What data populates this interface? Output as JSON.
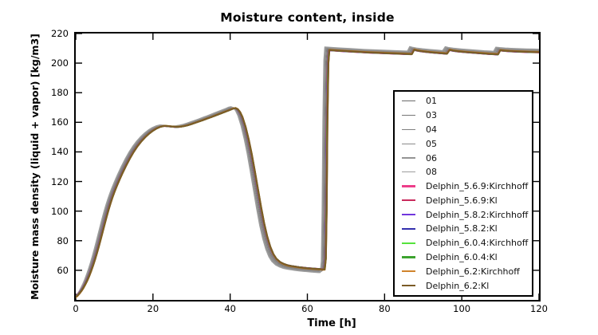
{
  "chart_data": {
    "type": "line",
    "title": "Moisture content, inside",
    "xlabel": "Time [h]",
    "ylabel": "Moisture mass density (liquid + vapor) [kg/m3]",
    "xlim": [
      0,
      120
    ],
    "ylim": [
      40,
      220
    ],
    "x_ticks": [
      0,
      20,
      40,
      60,
      80,
      100,
      120
    ],
    "y_ticks": [
      60,
      80,
      100,
      120,
      140,
      160,
      180,
      200,
      220
    ],
    "grid": false,
    "legend_position": "inside-right",
    "axis_color": "#000000",
    "background": "#ffffff",
    "pivot_value": 135,
    "series": [
      {
        "label": "01",
        "color": "#6a6a6a",
        "line_width": 1.1,
        "t_offset_h": -0.3,
        "amplitude_scale": 1.004
      },
      {
        "label": "03",
        "color": "#757575",
        "line_width": 1.1,
        "t_offset_h": -0.5,
        "amplitude_scale": 1.009
      },
      {
        "label": "04",
        "color": "#808080",
        "line_width": 1.1,
        "t_offset_h": -0.7,
        "amplitude_scale": 1.014
      },
      {
        "label": "05",
        "color": "#8a8a8a",
        "line_width": 1.1,
        "t_offset_h": -0.9,
        "amplitude_scale": 1.019
      },
      {
        "label": "06",
        "color": "#949494",
        "line_width": 1.1,
        "t_offset_h": -1.05,
        "amplitude_scale": 1.024
      },
      {
        "label": "08",
        "color": "#9e9e9e",
        "line_width": 1.1,
        "t_offset_h": -1.2,
        "amplitude_scale": 1.029
      },
      {
        "label": "Delphin_5.6.9:Kirchhoff",
        "color": "#ed3e8a",
        "line_width": 2.2,
        "t_offset_h": -0.18,
        "amplitude_scale": 0.998
      },
      {
        "label": "Delphin_5.6.9:Kl",
        "color": "#c92a5c",
        "line_width": 2.2,
        "t_offset_h": -0.15,
        "amplitude_scale": 0.9985
      },
      {
        "label": "Delphin_5.8.2:Kirchhoff",
        "color": "#7036dd",
        "line_width": 2.2,
        "t_offset_h": -0.12,
        "amplitude_scale": 0.999
      },
      {
        "label": "Delphin_5.8.2:Kl",
        "color": "#332fae",
        "line_width": 2.2,
        "t_offset_h": -0.09,
        "amplitude_scale": 0.9995
      },
      {
        "label": "Delphin_6.0.4:Kirchhoff",
        "color": "#55e33c",
        "line_width": 2.2,
        "t_offset_h": -0.06,
        "amplitude_scale": 1.0
      },
      {
        "label": "Delphin_6.0.4:Kl",
        "color": "#3da32f",
        "line_width": 2.2,
        "t_offset_h": -0.03,
        "amplitude_scale": 1.0005
      },
      {
        "label": "Delphin_6.2:Kirchhoff",
        "color": "#d0842c",
        "line_width": 2.2,
        "t_offset_h": -0.01,
        "amplitude_scale": 1.003
      },
      {
        "label": "Delphin_6.2:Kl",
        "color": "#7b5b26",
        "line_width": 2.2,
        "t_offset_h": 0,
        "amplitude_scale": 1.0
      }
    ],
    "base_curve": [
      [
        -1,
        41
      ],
      [
        0,
        42
      ],
      [
        0.5,
        43
      ],
      [
        1,
        44.5
      ],
      [
        1.5,
        46.2
      ],
      [
        2,
        48.2
      ],
      [
        2.5,
        50.6
      ],
      [
        3,
        53.2
      ],
      [
        3.5,
        56.2
      ],
      [
        4,
        59.6
      ],
      [
        4.5,
        63.3
      ],
      [
        5,
        67.3
      ],
      [
        5.5,
        71.7
      ],
      [
        6,
        76.3
      ],
      [
        6.5,
        81.2
      ],
      [
        7,
        86.2
      ],
      [
        7.5,
        91.2
      ],
      [
        8,
        96.1
      ],
      [
        8.5,
        100.8
      ],
      [
        9,
        105.1
      ],
      [
        9.5,
        109.1
      ],
      [
        10,
        112.7
      ],
      [
        10.5,
        116
      ],
      [
        11,
        119.1
      ],
      [
        11.5,
        122.1
      ],
      [
        12,
        125
      ],
      [
        13,
        130.4
      ],
      [
        14,
        135.4
      ],
      [
        15,
        139.9
      ],
      [
        16,
        143.8
      ],
      [
        17,
        147.1
      ],
      [
        18,
        149.9
      ],
      [
        19,
        152.3
      ],
      [
        20,
        154.3
      ],
      [
        21,
        155.9
      ],
      [
        22,
        157
      ],
      [
        23,
        157.6
      ],
      [
        24,
        157.4
      ],
      [
        25,
        157.1
      ],
      [
        26,
        156.9
      ],
      [
        27,
        157
      ],
      [
        28,
        157.4
      ],
      [
        29,
        158
      ],
      [
        30,
        158.8
      ],
      [
        31,
        159.7
      ],
      [
        32,
        160.6
      ],
      [
        33,
        161.5
      ],
      [
        34,
        162.5
      ],
      [
        35,
        163.4
      ],
      [
        36,
        164.4
      ],
      [
        37,
        165.4
      ],
      [
        38,
        166.4
      ],
      [
        39,
        167.4
      ],
      [
        40,
        168.4
      ],
      [
        40.8,
        169.3
      ],
      [
        41.4,
        169.6
      ],
      [
        42,
        168.8
      ],
      [
        42.6,
        166.8
      ],
      [
        43.2,
        163.5
      ],
      [
        44,
        157
      ],
      [
        44.8,
        148.5
      ],
      [
        45.6,
        138.5
      ],
      [
        46.4,
        127
      ],
      [
        47.2,
        115
      ],
      [
        48,
        103
      ],
      [
        48.8,
        92
      ],
      [
        49.6,
        83
      ],
      [
        50.4,
        76
      ],
      [
        51.2,
        71
      ],
      [
        52,
        67.8
      ],
      [
        53,
        65.5
      ],
      [
        54,
        64.2
      ],
      [
        55,
        63.3
      ],
      [
        56,
        62.8
      ],
      [
        57,
        62.4
      ],
      [
        58,
        62
      ],
      [
        59,
        61.7
      ],
      [
        60,
        61.4
      ],
      [
        61,
        61.2
      ],
      [
        62,
        61
      ],
      [
        63,
        60.8
      ],
      [
        64,
        60.6
      ],
      [
        64.5,
        60.6
      ],
      [
        64.8,
        68
      ],
      [
        65,
        100
      ],
      [
        65.2,
        160
      ],
      [
        65.45,
        200
      ],
      [
        65.7,
        208.8
      ],
      [
        66.5,
        208.7
      ],
      [
        68,
        208.4
      ],
      [
        70,
        208.1
      ],
      [
        72,
        207.8
      ],
      [
        74,
        207.5
      ],
      [
        76,
        207.2
      ],
      [
        78,
        207
      ],
      [
        80,
        206.8
      ],
      [
        82,
        206.6
      ],
      [
        84,
        206.4
      ],
      [
        86,
        206.2
      ],
      [
        87.1,
        206.1
      ],
      [
        87.7,
        209.1
      ],
      [
        88.4,
        208.6
      ],
      [
        89.5,
        208.1
      ],
      [
        91,
        207.6
      ],
      [
        93,
        207.1
      ],
      [
        95,
        206.7
      ],
      [
        96.2,
        206.4
      ],
      [
        96.9,
        209
      ],
      [
        97.7,
        208.5
      ],
      [
        99,
        208
      ],
      [
        101,
        207.5
      ],
      [
        103,
        207.1
      ],
      [
        105,
        206.7
      ],
      [
        107,
        206.3
      ],
      [
        108.5,
        206.1
      ],
      [
        109.4,
        205.9
      ],
      [
        110,
        208.7
      ],
      [
        111,
        208.4
      ],
      [
        112.5,
        208.1
      ],
      [
        114,
        207.9
      ],
      [
        116,
        207.7
      ],
      [
        118,
        207.5
      ],
      [
        120,
        207.4
      ],
      [
        121.5,
        207.3
      ]
    ]
  }
}
